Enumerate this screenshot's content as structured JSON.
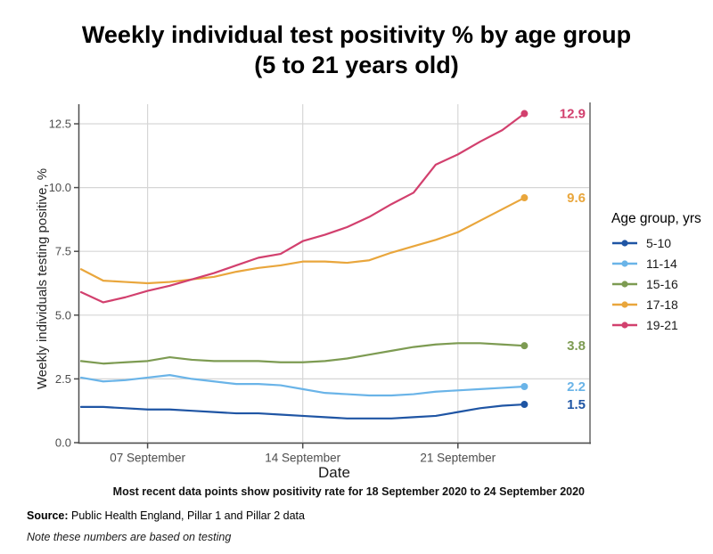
{
  "title": {
    "line1": "Weekly individual test positivity % by age group",
    "line2": "(5 to 21 years old)"
  },
  "caption": "Most recent data points show positivity rate for 18 September 2020 to 24 September 2020",
  "source": {
    "label": "Source:",
    "text": " Public Health England, Pillar 1 and Pillar 2 data"
  },
  "note": "Note these numbers are based on testing",
  "chart_data": {
    "type": "line",
    "title": "Weekly individual test positivity % by age group (5 to 21 years old)",
    "xlabel": "Date",
    "ylabel": "Weekly individuals testing positive, %",
    "legend_title": "Age group, yrs",
    "legend_position": "right",
    "grid": true,
    "x_unit": "day of September 2020",
    "x_days": [
      4,
      5,
      6,
      7,
      8,
      9,
      10,
      11,
      12,
      13,
      14,
      15,
      16,
      17,
      18,
      19,
      20,
      21,
      22,
      23,
      24
    ],
    "x_tick_days": [
      7,
      14,
      21
    ],
    "x_tick_labels": [
      "07 September",
      "14 September",
      "21 September"
    ],
    "y_tick_values": [
      0,
      2.5,
      5,
      7.5,
      10,
      12.5
    ],
    "y_tick_labels": [
      "0.0",
      "2.5",
      "5.0",
      "7.5",
      "10.0",
      "12.5"
    ],
    "ylim": [
      0,
      13.3
    ],
    "colors": {
      "axis": "#4d4d4d",
      "tick_label": "#4d4d4d",
      "grid": "#d6d6d6",
      "panel_border_right": "#8c8c8c"
    },
    "series": [
      {
        "name": "5-10",
        "color": "#1f55a4",
        "end_label": "1.5",
        "values": [
          1.4,
          1.4,
          1.35,
          1.3,
          1.3,
          1.25,
          1.2,
          1.15,
          1.15,
          1.1,
          1.05,
          1.0,
          0.95,
          0.95,
          0.95,
          1.0,
          1.05,
          1.2,
          1.35,
          1.45,
          1.5
        ]
      },
      {
        "name": "11-14",
        "color": "#6ab4e8",
        "end_label": "2.2",
        "values": [
          2.55,
          2.4,
          2.45,
          2.55,
          2.65,
          2.5,
          2.4,
          2.3,
          2.3,
          2.25,
          2.1,
          1.95,
          1.9,
          1.85,
          1.85,
          1.9,
          2.0,
          2.05,
          2.1,
          2.15,
          2.2
        ]
      },
      {
        "name": "15-16",
        "color": "#7d9b52",
        "end_label": "3.8",
        "values": [
          3.2,
          3.1,
          3.15,
          3.2,
          3.35,
          3.25,
          3.2,
          3.2,
          3.2,
          3.15,
          3.15,
          3.2,
          3.3,
          3.45,
          3.6,
          3.75,
          3.85,
          3.9,
          3.9,
          3.85,
          3.8
        ]
      },
      {
        "name": "17-18",
        "color": "#e9a63c",
        "end_label": "9.6",
        "values": [
          6.8,
          6.35,
          6.3,
          6.25,
          6.3,
          6.4,
          6.5,
          6.7,
          6.85,
          6.95,
          7.1,
          7.1,
          7.05,
          7.15,
          7.45,
          7.7,
          7.95,
          8.25,
          8.7,
          9.15,
          9.6
        ]
      },
      {
        "name": "19-21",
        "color": "#d2406e",
        "end_label": "12.9",
        "values": [
          5.9,
          5.5,
          5.7,
          5.95,
          6.15,
          6.4,
          6.65,
          6.95,
          7.25,
          7.4,
          7.9,
          8.15,
          8.45,
          8.85,
          9.35,
          9.8,
          10.9,
          11.3,
          11.8,
          12.25,
          12.9
        ]
      }
    ]
  }
}
